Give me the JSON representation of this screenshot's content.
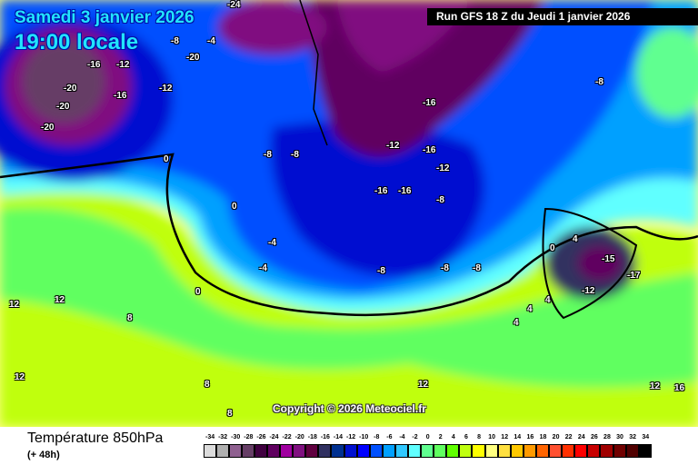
{
  "header": {
    "date": "Samedi 3 janvier 2026",
    "time": "19:00 locale",
    "run": "Run GFS 18 Z du Jeudi 1 janvier 2026"
  },
  "map": {
    "copyright": "Copyright © 2026 Meteociel.fr",
    "contour_labels": [
      "-24",
      "-20",
      "-16",
      "-12",
      "-20",
      "-20",
      "-16",
      "-20",
      "-4",
      "-8",
      "-12",
      "-16",
      "-16",
      "-12",
      "-8",
      "-16",
      "-16",
      "-12",
      "-8",
      "-8",
      "0",
      "-4",
      "-4",
      "0",
      "0",
      "-8",
      "-8",
      "12",
      "12",
      "12",
      "8",
      "8",
      "8",
      "12",
      "4",
      "4",
      "4",
      "-12",
      "-15",
      "-17",
      "0",
      "4",
      "12",
      "16",
      "-8",
      "-8"
    ]
  },
  "footer": {
    "title": "Température 850hPa",
    "subtitle": "(+ 48h)"
  },
  "legend": {
    "labels": [
      "-34",
      "-32",
      "-30",
      "-28",
      "-26",
      "-24",
      "-22",
      "-20",
      "-18",
      "-16",
      "-14",
      "-12",
      "-10",
      "-8",
      "-6",
      "-4",
      "-2",
      "0",
      "2",
      "4",
      "6",
      "8",
      "10",
      "12",
      "14",
      "16",
      "18",
      "20",
      "22",
      "24",
      "26",
      "28",
      "30",
      "32",
      "34"
    ],
    "colors": [
      "#dcdcdc",
      "#b0b0b0",
      "#8f6090",
      "#663e66",
      "#400040",
      "#600060",
      "#a000a0",
      "#801080",
      "#600040",
      "#303060",
      "#003090",
      "#0010d0",
      "#0000ff",
      "#0050ff",
      "#00a0ff",
      "#30c8ff",
      "#60ffff",
      "#60ff90",
      "#60ff60",
      "#60ff00",
      "#c0ff10",
      "#ffff00",
      "#ffff80",
      "#ffe040",
      "#ffc800",
      "#ff9a00",
      "#ff6400",
      "#ff5030",
      "#ff3000",
      "#ff0000",
      "#c80000",
      "#a00000",
      "#700000",
      "#500000",
      "#000000"
    ]
  }
}
